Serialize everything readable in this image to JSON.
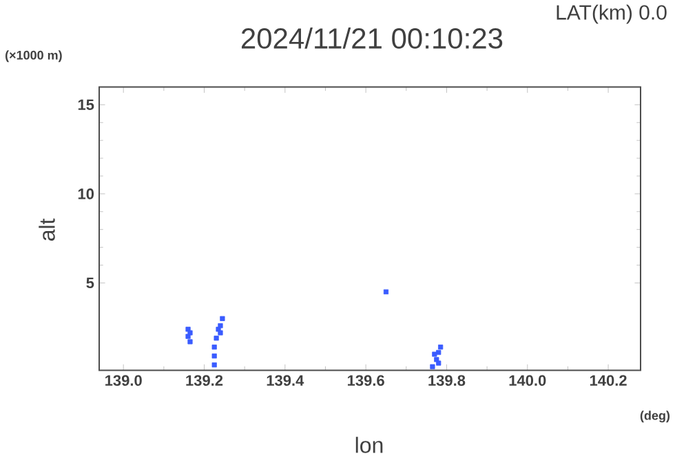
{
  "chart_data": {
    "type": "scatter",
    "title": "2024/11/21 00:10:23",
    "subtitle": "LAT(km) 0.0",
    "xlabel": "lon",
    "ylabel": "alt",
    "annotations": [
      "(×1000 m)",
      "(deg)"
    ],
    "xlim": [
      138.94,
      140.28
    ],
    "ylim": [
      0.1,
      16
    ],
    "xticks": [
      {
        "value": 139.0,
        "label": "139.0"
      },
      {
        "value": 139.2,
        "label": "139.2"
      },
      {
        "value": 139.4,
        "label": "139.4"
      },
      {
        "value": 139.6,
        "label": "139.6"
      },
      {
        "value": 139.8,
        "label": "139.8"
      },
      {
        "value": 140.0,
        "label": "140.0"
      },
      {
        "value": 140.2,
        "label": "140.2"
      }
    ],
    "yticks": [
      5,
      10,
      15
    ],
    "grid": false,
    "marker": "square",
    "series": [
      {
        "color": "#3a5cff",
        "x": [
          139.16,
          139.16,
          139.165,
          139.165,
          139.225,
          139.225,
          139.23,
          139.235,
          139.24,
          139.24,
          139.245,
          139.225,
          139.65,
          139.765,
          139.775,
          139.78,
          139.785,
          139.77,
          139.78
        ],
        "values": [
          2.4,
          2.0,
          1.7,
          2.2,
          0.9,
          1.4,
          1.9,
          2.4,
          2.6,
          2.2,
          3.0,
          0.4,
          4.5,
          0.3,
          0.7,
          1.1,
          1.4,
          1.0,
          0.5
        ]
      }
    ]
  }
}
